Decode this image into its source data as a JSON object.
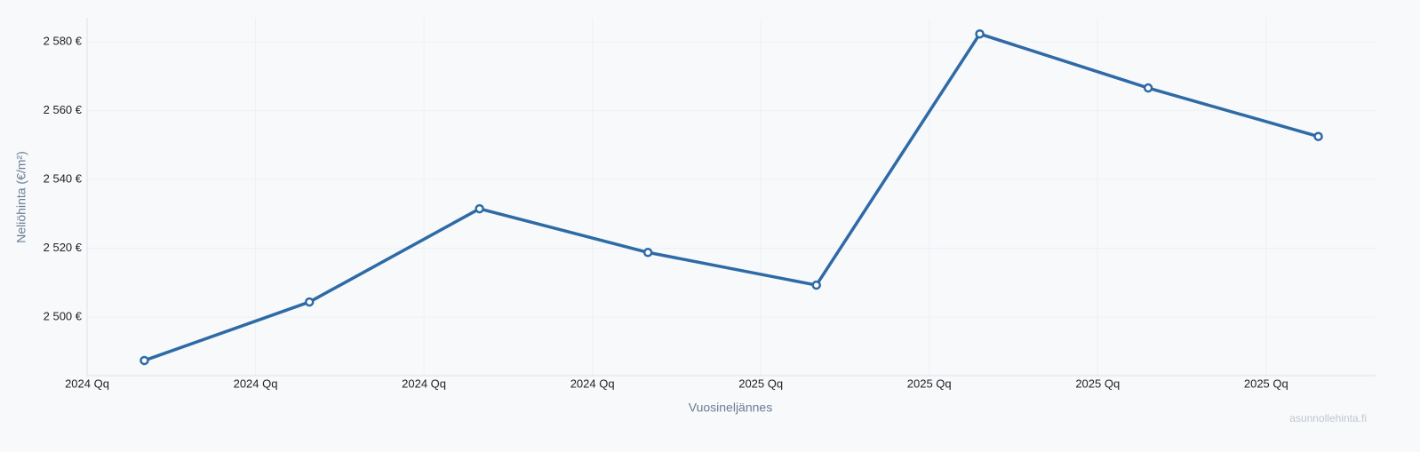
{
  "chart_data": {
    "type": "line",
    "x_label": "Vuosineljännes",
    "y_label": "Neliöhinta (€/m²)",
    "watermark": "asunnollehinta.fi",
    "x": [
      0.34,
      1.32,
      2.33,
      3.33,
      4.33,
      5.3,
      6.3,
      7.31
    ],
    "series": [
      {
        "color": "#2e6aa6",
        "values": [
          2487.4,
          2504.4,
          2531.5,
          2518.8,
          2509.3,
          2582.3,
          2566.6,
          2552.5
        ]
      }
    ],
    "xlim": [
      0,
      7.65
    ],
    "xticks": [
      {
        "value": 0,
        "label": "2024 Qq"
      },
      {
        "value": 1,
        "label": "2024 Qq"
      },
      {
        "value": 2,
        "label": "2024 Qq"
      },
      {
        "value": 3,
        "label": "2024 Qq"
      },
      {
        "value": 4,
        "label": "2025 Qq"
      },
      {
        "value": 5,
        "label": "2025 Qq"
      },
      {
        "value": 6,
        "label": "2025 Qq"
      },
      {
        "value": 7,
        "label": "2025 Qq"
      }
    ],
    "ylim": [
      2483,
      2587
    ],
    "yticks": [
      {
        "value": 2500,
        "label": "2 500 €"
      },
      {
        "value": 2520,
        "label": "2 520 €"
      },
      {
        "value": 2540,
        "label": "2 540 €"
      },
      {
        "value": 2560,
        "label": "2 560 €"
      },
      {
        "value": 2580,
        "label": "2 580 €"
      }
    ],
    "grid": true
  }
}
